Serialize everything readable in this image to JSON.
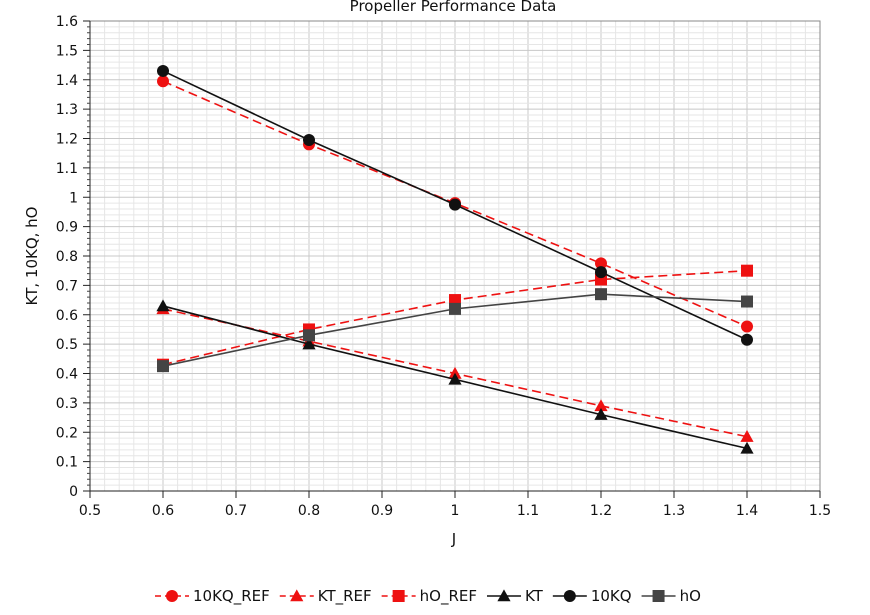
{
  "chart_data": {
    "type": "line",
    "title": "Propeller Performance Data",
    "xlabel": "J",
    "ylabel": "KT, 10KQ, hO",
    "xlim": [
      0.5,
      1.5
    ],
    "ylim": [
      0,
      1.6
    ],
    "x_ticks": [
      "0.5",
      "0.6",
      "0.7",
      "0.8",
      "0.9",
      "1",
      "1.1",
      "1.2",
      "1.3",
      "1.4",
      "1.5"
    ],
    "y_ticks": [
      "0",
      "0.1",
      "0.2",
      "0.3",
      "0.4",
      "0.5",
      "0.6",
      "0.7",
      "0.8",
      "0.9",
      "1",
      "1.1",
      "1.2",
      "1.3",
      "1.4",
      "1.5",
      "1.6"
    ],
    "grid": true,
    "legend_position": "bottom",
    "x": [
      0.6,
      0.8,
      1.0,
      1.2,
      1.4
    ],
    "series": [
      {
        "name": "10KQ_REF",
        "values": [
          1.395,
          1.18,
          0.98,
          0.775,
          0.56
        ],
        "color": "#ee1111",
        "dash": true,
        "marker": "circle"
      },
      {
        "name": "KT_REF",
        "values": [
          0.62,
          0.51,
          0.4,
          0.29,
          0.185
        ],
        "color": "#ee1111",
        "dash": true,
        "marker": "triangle"
      },
      {
        "name": "hO_REF",
        "values": [
          0.43,
          0.55,
          0.65,
          0.72,
          0.75
        ],
        "color": "#ee1111",
        "dash": true,
        "marker": "square"
      },
      {
        "name": "KT",
        "values": [
          0.63,
          0.5,
          0.38,
          0.26,
          0.145
        ],
        "color": "#111111",
        "dash": false,
        "marker": "triangle"
      },
      {
        "name": "10KQ",
        "values": [
          1.43,
          1.195,
          0.975,
          0.745,
          0.515
        ],
        "color": "#111111",
        "dash": false,
        "marker": "circle"
      },
      {
        "name": "hO",
        "values": [
          0.425,
          0.53,
          0.62,
          0.67,
          0.645
        ],
        "color": "#444444",
        "dash": false,
        "marker": "square"
      }
    ]
  }
}
